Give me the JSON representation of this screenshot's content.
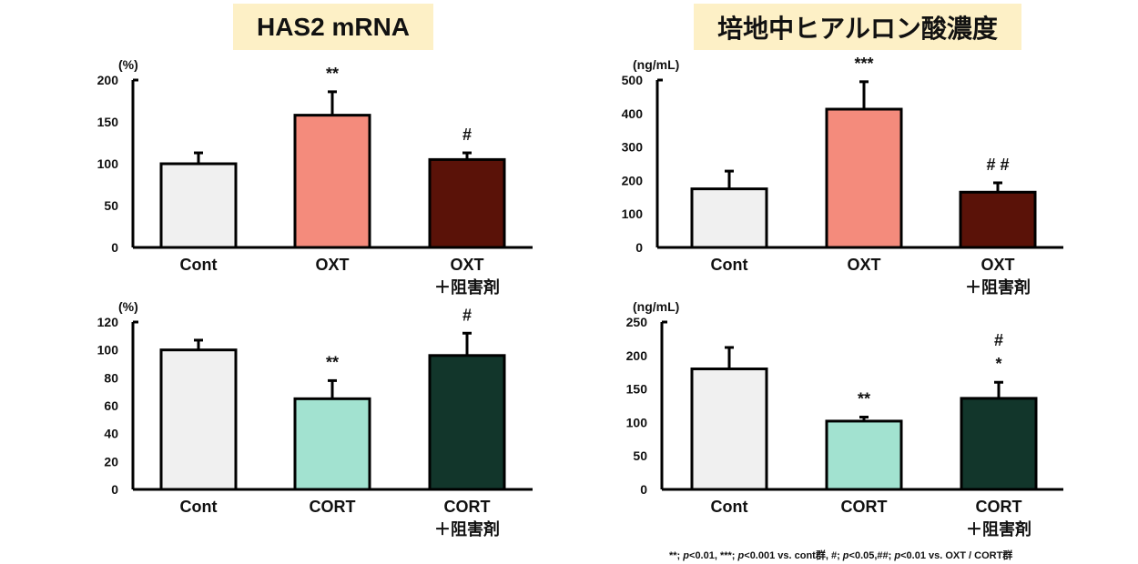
{
  "titles": {
    "left": "HAS2 mRNA",
    "right": "培地中ヒアルロン酸濃度"
  },
  "footnote": {
    "part1": "**; ",
    "p1": "p",
    "part2": "<0.01, ***; ",
    "p2": "p",
    "part3": "<0.001 vs. cont群, #; ",
    "p3": "p",
    "part4": "<0.05,##; ",
    "p4": "p",
    "part5": "<0.01 vs. OXT / CORT群"
  },
  "colors": {
    "cont": "#f0f0f0",
    "oxt": "#f48b7c",
    "oxt_inhib": "#5a1208",
    "cort": "#a2e2d0",
    "cort_inhib": "#12362b"
  },
  "chart_data": [
    {
      "type": "bar",
      "ylabel": "(%)",
      "ylim": [
        0,
        200
      ],
      "yticks": [
        0,
        50,
        100,
        150,
        200
      ],
      "categories": [
        "Cont",
        "OXT",
        "OXT\n＋阻害剤"
      ],
      "values": [
        100,
        158,
        105
      ],
      "errors": [
        13,
        28,
        8
      ],
      "annotations": [
        "",
        "**",
        "#"
      ],
      "colors": [
        "#f0f0f0",
        "#f48b7c",
        "#5a1208"
      ]
    },
    {
      "type": "bar",
      "ylabel": "(ng/mL)",
      "ylim": [
        0,
        500
      ],
      "yticks": [
        0,
        100,
        200,
        300,
        400,
        500
      ],
      "categories": [
        "Cont",
        "OXT",
        "OXT\n＋阻害剤"
      ],
      "values": [
        175,
        413,
        165
      ],
      "errors": [
        53,
        82,
        28
      ],
      "annotations": [
        "",
        "***",
        "# #"
      ],
      "colors": [
        "#f0f0f0",
        "#f48b7c",
        "#5a1208"
      ]
    },
    {
      "type": "bar",
      "ylabel": "(%)",
      "ylim": [
        0,
        120
      ],
      "yticks": [
        0,
        20,
        40,
        60,
        80,
        100,
        120
      ],
      "categories": [
        "Cont",
        "CORT",
        "CORT\n＋阻害剤"
      ],
      "values": [
        100,
        65,
        96
      ],
      "errors": [
        7,
        13,
        16
      ],
      "annotations": [
        "",
        "**",
        "#"
      ],
      "colors": [
        "#f0f0f0",
        "#a2e2d0",
        "#12362b"
      ]
    },
    {
      "type": "bar",
      "ylabel": "(ng/mL)",
      "ylim": [
        0,
        250
      ],
      "yticks": [
        0,
        50,
        100,
        150,
        200,
        250
      ],
      "categories": [
        "Cont",
        "CORT",
        "CORT\n＋阻害剤"
      ],
      "values": [
        180,
        102,
        136
      ],
      "errors": [
        32,
        6,
        24
      ],
      "annotations": [
        "",
        "**",
        "#\n*"
      ],
      "colors": [
        "#f0f0f0",
        "#a2e2d0",
        "#12362b"
      ]
    }
  ]
}
